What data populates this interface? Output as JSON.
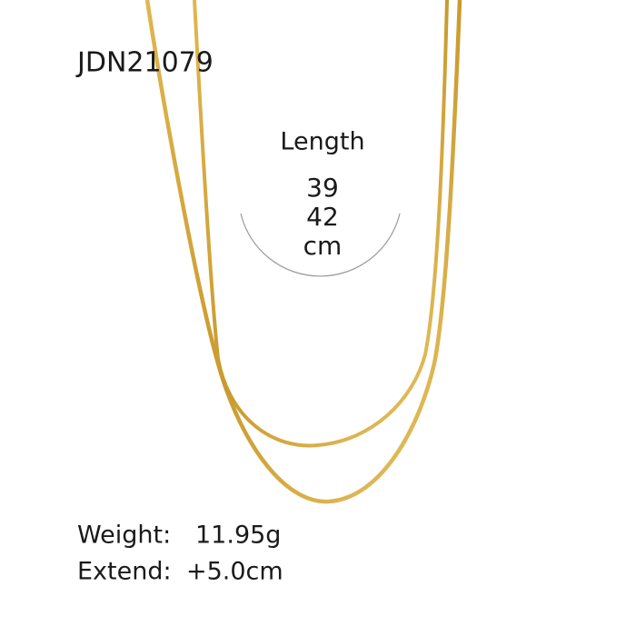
{
  "product_code": "JDN21079",
  "length": {
    "label": "Length",
    "values": [
      "39",
      "42"
    ],
    "unit": "cm"
  },
  "specs": [
    {
      "label": "Weight:",
      "value": "11.95g"
    },
    {
      "label": "Extend:",
      "value": "+5.0cm"
    }
  ]
}
